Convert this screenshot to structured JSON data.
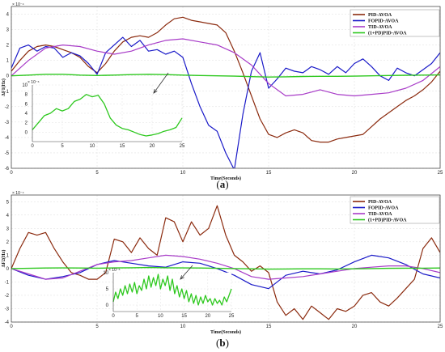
{
  "chart_data": [
    {
      "type": "line",
      "caption_letter": "a",
      "xlabel": "Time(Seconds)",
      "ylabel": "ΔF1(Hz)",
      "y_exponent": "× 10⁻⁴",
      "xlim": [
        0,
        25
      ],
      "ylim": [
        -6,
        4.5
      ],
      "xticks": [
        0,
        5,
        10,
        15,
        20,
        25
      ],
      "yticks": [
        -6,
        -5,
        -4,
        -3,
        -2,
        -1,
        0,
        1,
        2,
        3,
        4
      ],
      "legend_position": "top-right",
      "series": [
        {
          "name": "PID-AVOA",
          "color": "#8B2A0E",
          "x": [
            0,
            0.5,
            1,
            1.5,
            2,
            2.5,
            3,
            3.5,
            4,
            4.5,
            5,
            5.5,
            6,
            6.5,
            7,
            7.5,
            8,
            8.5,
            9,
            9.5,
            10,
            10.5,
            11,
            11.5,
            12,
            12.5,
            13,
            13.5,
            14,
            14.5,
            15,
            15.5,
            16,
            16.5,
            17,
            17.5,
            18,
            18.5,
            19,
            19.5,
            20,
            20.5,
            21,
            21.5,
            22,
            22.5,
            23,
            23.5,
            24,
            24.5,
            25
          ],
          "y": [
            0.3,
            1.0,
            1.6,
            1.9,
            2.0,
            1.9,
            1.7,
            1.5,
            1.2,
            0.6,
            0.2,
            0.8,
            1.6,
            2.2,
            2.5,
            2.6,
            2.5,
            2.8,
            3.3,
            3.7,
            3.8,
            3.6,
            3.5,
            3.4,
            3.3,
            2.8,
            1.6,
            0.2,
            -1.3,
            -2.8,
            -3.8,
            -4.0,
            -3.7,
            -3.5,
            -3.7,
            -4.2,
            -4.3,
            -4.3,
            -4.1,
            -4.0,
            -3.9,
            -3.8,
            -3.3,
            -2.8,
            -2.4,
            -2.0,
            -1.6,
            -1.3,
            -0.9,
            -0.4,
            0.3
          ]
        },
        {
          "name": "FOPID-AVOA",
          "color": "#1A1AC8",
          "x": [
            0,
            0.5,
            1,
            1.5,
            2,
            2.5,
            3,
            3.5,
            4,
            4.5,
            5,
            5.5,
            6,
            6.5,
            7,
            7.5,
            8,
            8.5,
            9,
            9.5,
            10,
            10.5,
            11,
            11.5,
            12,
            12.5,
            13,
            13.5,
            14,
            14.5,
            15,
            15.5,
            16,
            16.5,
            17,
            17.5,
            18,
            18.5,
            19,
            19.5,
            20,
            20.5,
            21,
            21.5,
            22,
            22.5,
            23,
            23.5,
            24,
            24.5,
            25
          ],
          "y": [
            0.5,
            1.8,
            2.0,
            1.6,
            1.9,
            1.8,
            1.2,
            1.5,
            1.3,
            0.8,
            0.1,
            1.5,
            2.0,
            2.5,
            1.9,
            2.3,
            1.6,
            1.7,
            1.4,
            1.6,
            1.2,
            -0.5,
            -2.0,
            -3.2,
            -3.6,
            -5.0,
            -6.1,
            -2.5,
            0.3,
            1.5,
            -0.8,
            -0.2,
            0.5,
            0.3,
            0.2,
            0.6,
            0.4,
            0.1,
            0.6,
            0.2,
            0.8,
            1.1,
            0.6,
            0.0,
            -0.3,
            0.5,
            0.2,
            0.0,
            0.4,
            0.8,
            1.5
          ]
        },
        {
          "name": "TID-AVOA",
          "color": "#A83CC8",
          "x": [
            0,
            1,
            2,
            3,
            4,
            5,
            6,
            7,
            8,
            9,
            10,
            11,
            12,
            13,
            14,
            15,
            16,
            17,
            18,
            19,
            20,
            21,
            22,
            23,
            24,
            25
          ],
          "y": [
            0.0,
            1.0,
            1.8,
            2.0,
            1.9,
            1.6,
            1.4,
            1.6,
            2.0,
            2.3,
            2.4,
            2.2,
            2.0,
            1.5,
            0.7,
            -0.5,
            -1.3,
            -1.2,
            -0.9,
            -1.2,
            -1.3,
            -1.2,
            -1.1,
            -0.8,
            -0.3,
            0.6
          ]
        },
        {
          "name": "(1+PD)PID-AVOA",
          "color": "#2DC81E",
          "x": [
            0,
            1,
            2,
            3,
            4,
            5,
            6,
            7,
            8,
            9,
            10,
            11,
            12,
            13,
            14,
            15,
            16,
            17,
            18,
            19,
            20,
            21,
            22,
            23,
            24,
            25
          ],
          "y": [
            0.0,
            0.05,
            0.1,
            0.1,
            0.05,
            0.02,
            0.05,
            0.08,
            0.1,
            0.08,
            0.05,
            0.02,
            0.0,
            -0.02,
            -0.05,
            -0.08,
            -0.06,
            -0.04,
            -0.03,
            -0.03,
            -0.02,
            0.0,
            0.02,
            0.04,
            0.05,
            0.06
          ]
        }
      ],
      "inset": {
        "y_exponent": "× 10⁻⁶",
        "xlim": [
          0,
          25
        ],
        "ylim": [
          -2,
          10
        ],
        "xticks": [
          0,
          5,
          10,
          15,
          20,
          25
        ],
        "yticks": [
          0,
          2,
          4,
          6,
          8,
          10
        ],
        "series": {
          "name": "(1+PD)PID-AVOA",
          "color": "#2DC81E",
          "x": [
            0,
            1,
            2,
            3,
            4,
            5,
            6,
            7,
            8,
            9,
            10,
            11,
            12,
            13,
            14,
            15,
            16,
            17,
            18,
            19,
            20,
            21,
            22,
            23,
            24,
            25
          ],
          "y": [
            0.5,
            2.0,
            3.5,
            4.0,
            5.0,
            4.5,
            5.0,
            6.5,
            7.0,
            8.0,
            7.5,
            7.8,
            6.0,
            3.0,
            1.5,
            0.8,
            0.5,
            0.0,
            -0.5,
            -0.8,
            -0.6,
            -0.3,
            0.2,
            0.5,
            1.0,
            3.0
          ]
        }
      }
    },
    {
      "type": "line",
      "caption_letter": "b",
      "xlabel": "Time(Seconds)",
      "ylabel": "ΔF2(Hz)",
      "y_exponent": "× 10⁻⁴",
      "xlim": [
        0,
        25
      ],
      "ylim": [
        -4,
        5.5
      ],
      "xticks": [
        0,
        5,
        10,
        15,
        20,
        25
      ],
      "yticks": [
        -4,
        -3,
        -2,
        -1,
        0,
        1,
        2,
        3,
        4,
        5
      ],
      "legend_position": "top-right",
      "series": [
        {
          "name": "PID-AVOA",
          "color": "#8B2A0E",
          "x": [
            0,
            0.5,
            1,
            1.5,
            2,
            2.5,
            3,
            3.5,
            4,
            4.5,
            5,
            5.5,
            6,
            6.5,
            7,
            7.5,
            8,
            8.5,
            9,
            9.5,
            10,
            10.5,
            11,
            11.5,
            12,
            12.5,
            13,
            13.5,
            14,
            14.5,
            15,
            15.5,
            16,
            16.5,
            17,
            17.5,
            18,
            18.5,
            19,
            19.5,
            20,
            20.5,
            21,
            21.5,
            22,
            22.5,
            23,
            23.5,
            24,
            24.5,
            25
          ],
          "y": [
            0.0,
            1.5,
            2.7,
            2.5,
            2.7,
            1.5,
            0.5,
            -0.3,
            -0.5,
            -0.8,
            -0.8,
            -0.3,
            2.2,
            2.0,
            1.2,
            2.3,
            1.5,
            1.0,
            3.8,
            3.5,
            2.0,
            3.5,
            2.5,
            3.0,
            4.7,
            2.5,
            1.0,
            0.5,
            -0.2,
            0.2,
            -0.3,
            -2.5,
            -3.5,
            -3.0,
            -3.8,
            -2.8,
            -3.3,
            -3.8,
            -3.0,
            -3.2,
            -2.8,
            -2.0,
            -1.8,
            -2.5,
            -2.8,
            -2.2,
            -1.5,
            -0.8,
            1.5,
            2.3,
            1.2
          ]
        },
        {
          "name": "FOPID-AVOA",
          "color": "#1A1AC8",
          "x": [
            0,
            1,
            2,
            3,
            4,
            5,
            6,
            7,
            8,
            9,
            10,
            11,
            12,
            13,
            14,
            15,
            16,
            17,
            18,
            19,
            20,
            21,
            22,
            23,
            24,
            25
          ],
          "y": [
            0.0,
            -0.5,
            -0.8,
            -0.6,
            -0.3,
            0.3,
            0.6,
            0.4,
            0.2,
            0.1,
            0.5,
            0.4,
            0.0,
            -0.5,
            -1.2,
            -1.5,
            -0.5,
            -0.2,
            -0.4,
            -0.1,
            0.5,
            1.0,
            0.8,
            0.3,
            -0.4,
            -0.7
          ]
        },
        {
          "name": "TID-AVOA",
          "color": "#A83CC8",
          "x": [
            0,
            1,
            2,
            3,
            4,
            5,
            6,
            7,
            8,
            9,
            10,
            11,
            12,
            13,
            14,
            15,
            16,
            17,
            18,
            19,
            20,
            21,
            22,
            23,
            24,
            25
          ],
          "y": [
            0.0,
            -0.4,
            -0.8,
            -0.7,
            -0.2,
            0.3,
            0.5,
            0.6,
            0.8,
            1.0,
            0.9,
            0.7,
            0.4,
            0.0,
            -0.6,
            -0.8,
            -0.7,
            -0.6,
            -0.4,
            -0.2,
            0.0,
            0.1,
            0.2,
            0.2,
            0.0,
            -0.3
          ]
        },
        {
          "name": "(1+PD)PID-AVOA",
          "color": "#2DC81E",
          "x": [
            0,
            1,
            2,
            3,
            4,
            5,
            6,
            7,
            8,
            9,
            10,
            11,
            12,
            13,
            14,
            15,
            16,
            17,
            18,
            19,
            20,
            21,
            22,
            23,
            24,
            25
          ],
          "y": [
            0.0,
            0.02,
            0.04,
            0.05,
            0.04,
            0.03,
            0.05,
            0.06,
            0.08,
            0.06,
            0.05,
            0.04,
            0.02,
            0.0,
            -0.02,
            -0.04,
            -0.03,
            -0.02,
            -0.02,
            -0.03,
            -0.02,
            0.0,
            0.02,
            0.03,
            0.03,
            0.04
          ]
        }
      ],
      "inset": {
        "y_exponent": "× 10⁻⁶",
        "xlim": [
          0,
          25
        ],
        "ylim": [
          -2,
          10
        ],
        "xticks": [
          0,
          5,
          10,
          15,
          20,
          25
        ],
        "yticks": [
          0,
          5,
          10
        ],
        "series": {
          "name": "(1+PD)PID-AVOA",
          "color": "#2DC81E",
          "x": [
            0,
            0.5,
            1,
            1.5,
            2,
            2.5,
            3,
            3.5,
            4,
            4.5,
            5,
            5.5,
            6,
            6.5,
            7,
            7.5,
            8,
            8.5,
            9,
            9.5,
            10,
            10.5,
            11,
            11.5,
            12,
            12.5,
            13,
            13.5,
            14,
            14.5,
            15,
            15.5,
            16,
            16.5,
            17,
            17.5,
            18,
            18.5,
            19,
            19.5,
            20,
            20.5,
            21,
            21.5,
            22,
            22.5,
            23,
            23.5,
            24,
            24.5,
            25
          ],
          "y": [
            1.0,
            4.0,
            2.0,
            5.0,
            3.0,
            6.0,
            3.5,
            6.5,
            4.0,
            7.0,
            3.5,
            6.0,
            4.5,
            8.0,
            5.0,
            9.0,
            5.5,
            8.5,
            6.0,
            9.5,
            5.0,
            8.0,
            6.0,
            9.0,
            4.5,
            8.0,
            3.5,
            6.0,
            2.5,
            5.0,
            2.0,
            4.5,
            1.0,
            3.5,
            0.5,
            3.0,
            0.0,
            2.5,
            0.5,
            3.0,
            1.0,
            2.0,
            0.0,
            2.0,
            0.5,
            1.5,
            0.0,
            2.5,
            1.0,
            3.0,
            5.0
          ]
        }
      }
    }
  ]
}
